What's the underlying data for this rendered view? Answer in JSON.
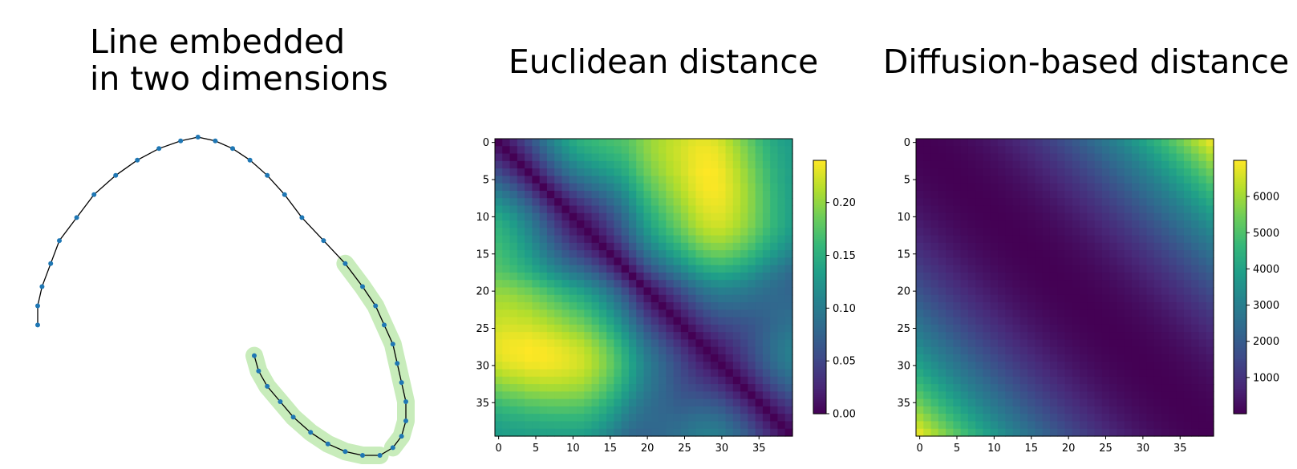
{
  "chart_data": [
    {
      "type": "scatter",
      "title_lines": [
        "Line embedded",
        "in two dimensions"
      ],
      "axes_visible": false,
      "line_color": "#000000",
      "point_color": "#1f77b4",
      "highlight_color": "#c8ecbb",
      "highlight_ranges": [
        [
          19,
          29
        ],
        [
          30,
          39
        ]
      ],
      "x": [
        0.05,
        0.05,
        0.06,
        0.08,
        0.1,
        0.14,
        0.18,
        0.23,
        0.28,
        0.33,
        0.38,
        0.42,
        0.46,
        0.5,
        0.54,
        0.58,
        0.62,
        0.66,
        0.71,
        0.76,
        0.8,
        0.83,
        0.85,
        0.87,
        0.88,
        0.89,
        0.9,
        0.9,
        0.89,
        0.87,
        0.84,
        0.8,
        0.76,
        0.72,
        0.68,
        0.64,
        0.61,
        0.58,
        0.56,
        0.55
      ],
      "y": [
        0.58,
        0.53,
        0.48,
        0.42,
        0.36,
        0.3,
        0.24,
        0.19,
        0.15,
        0.12,
        0.1,
        0.09,
        0.1,
        0.12,
        0.15,
        0.19,
        0.24,
        0.3,
        0.36,
        0.42,
        0.48,
        0.53,
        0.58,
        0.63,
        0.68,
        0.73,
        0.78,
        0.83,
        0.87,
        0.9,
        0.92,
        0.92,
        0.91,
        0.89,
        0.86,
        0.82,
        0.78,
        0.74,
        0.7,
        0.66
      ]
    },
    {
      "type": "heatmap",
      "title": "Euclidean distance",
      "size": 40,
      "colormap": "viridis",
      "vmin": 0.0,
      "vmax": 0.24,
      "xticks": [
        0,
        5,
        10,
        15,
        20,
        25,
        30,
        35
      ],
      "yticks": [
        0,
        5,
        10,
        15,
        20,
        25,
        30,
        35
      ],
      "colorbar_ticks": [
        0.0,
        0.05,
        0.1,
        0.15,
        0.2
      ],
      "colorbar_tick_labels": [
        "0.00",
        "0.05",
        "0.10",
        "0.15",
        "0.20"
      ],
      "value_model": "Euclidean distance between the 40 points of the embedded line"
    },
    {
      "type": "heatmap",
      "title": "Diffusion-based distance",
      "size": 40,
      "colormap": "viridis",
      "vmin": 0,
      "vmax": 7000,
      "xticks": [
        0,
        5,
        10,
        15,
        20,
        25,
        30,
        35
      ],
      "yticks": [
        0,
        5,
        10,
        15,
        20,
        25,
        30,
        35
      ],
      "colorbar_ticks": [
        1000,
        2000,
        3000,
        4000,
        5000,
        6000
      ],
      "colorbar_tick_labels": [
        "1000",
        "2000",
        "3000",
        "4000",
        "5000",
        "6000"
      ],
      "value_model": "approximately 4.4 * |i - j|^2"
    }
  ]
}
